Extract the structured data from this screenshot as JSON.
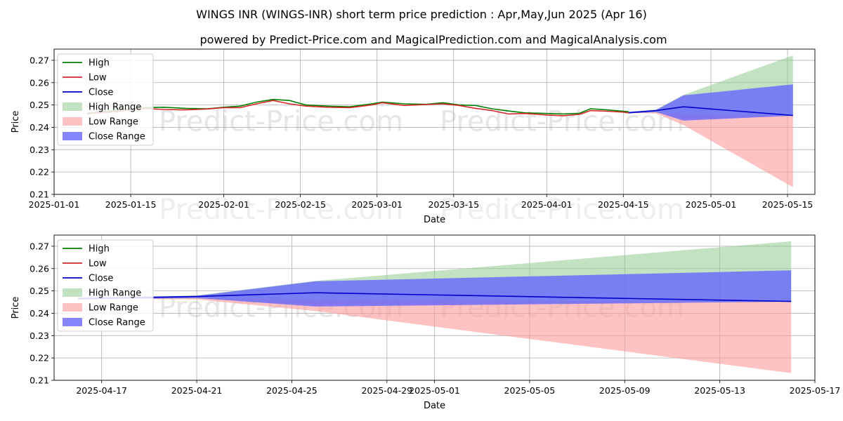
{
  "title": "WINGS INR (WINGS-INR) short term price prediction : Apr,May,Jun 2025 (Apr 16)",
  "subtitle": "powered by Predict-Price.com and MagicalPrediction.com and MagicalAnalysis.com",
  "watermark": "Predict-Price.com",
  "colors": {
    "high": "#008000",
    "low": "#d62728",
    "close": "#0000cc",
    "high_range": "#8fca8f",
    "low_range": "#ff9a9a",
    "close_range": "#6666ff",
    "grid": "#b0b0b0"
  },
  "chart_data": [
    {
      "type": "line",
      "panel": "top",
      "xlabel": "Date",
      "ylabel": "Price",
      "xlim": [
        "2025-01-01",
        "2025-05-20"
      ],
      "ylim": [
        0.21,
        0.275
      ],
      "grid": true,
      "legend_position": "top-left",
      "x_ticks": [
        "2025-01-01",
        "2025-01-15",
        "2025-02-01",
        "2025-02-15",
        "2025-03-01",
        "2025-03-15",
        "2025-04-01",
        "2025-04-15",
        "2025-05-01",
        "2025-05-15"
      ],
      "y_ticks": [
        "0.21",
        "0.22",
        "0.23",
        "0.24",
        "0.25",
        "0.26",
        "0.27"
      ],
      "legend": [
        "High",
        "Low",
        "Close",
        "High Range",
        "Low Range",
        "Close Range"
      ],
      "series": [
        {
          "name": "High",
          "points": [
            [
              "2025-01-07",
              0.2463
            ],
            [
              "2025-01-12",
              0.2475
            ],
            [
              "2025-01-17",
              0.2488
            ],
            [
              "2025-01-21",
              0.249
            ],
            [
              "2025-01-25",
              0.2485
            ],
            [
              "2025-01-29",
              0.2483
            ],
            [
              "2025-02-01",
              0.249
            ],
            [
              "2025-02-04",
              0.2495
            ],
            [
              "2025-02-07",
              0.2513
            ],
            [
              "2025-02-10",
              0.2525
            ],
            [
              "2025-02-13",
              0.252
            ],
            [
              "2025-02-16",
              0.25
            ],
            [
              "2025-02-20",
              0.2495
            ],
            [
              "2025-02-24",
              0.2492
            ],
            [
              "2025-02-28",
              0.2505
            ],
            [
              "2025-03-02",
              0.2513
            ],
            [
              "2025-03-06",
              0.2505
            ],
            [
              "2025-03-10",
              0.2503
            ],
            [
              "2025-03-13",
              0.251
            ],
            [
              "2025-03-16",
              0.25
            ],
            [
              "2025-03-19",
              0.2498
            ],
            [
              "2025-03-22",
              0.2483
            ],
            [
              "2025-03-25",
              0.2473
            ],
            [
              "2025-03-28",
              0.2465
            ],
            [
              "2025-04-01",
              0.2462
            ],
            [
              "2025-04-04",
              0.246
            ],
            [
              "2025-04-07",
              0.2463
            ],
            [
              "2025-04-09",
              0.2483
            ],
            [
              "2025-04-12",
              0.2478
            ],
            [
              "2025-04-15",
              0.2472
            ],
            [
              "2025-04-16",
              0.247
            ]
          ]
        },
        {
          "name": "Low",
          "points": [
            [
              "2025-01-07",
              0.246
            ],
            [
              "2025-01-12",
              0.247
            ],
            [
              "2025-01-17",
              0.2485
            ],
            [
              "2025-01-21",
              0.248
            ],
            [
              "2025-01-25",
              0.2478
            ],
            [
              "2025-01-29",
              0.2482
            ],
            [
              "2025-02-01",
              0.2488
            ],
            [
              "2025-02-04",
              0.2488
            ],
            [
              "2025-02-07",
              0.2505
            ],
            [
              "2025-02-10",
              0.252
            ],
            [
              "2025-02-13",
              0.2505
            ],
            [
              "2025-02-16",
              0.2495
            ],
            [
              "2025-02-20",
              0.249
            ],
            [
              "2025-02-24",
              0.2488
            ],
            [
              "2025-02-28",
              0.25
            ],
            [
              "2025-03-02",
              0.251
            ],
            [
              "2025-03-06",
              0.2498
            ],
            [
              "2025-03-10",
              0.2502
            ],
            [
              "2025-03-13",
              0.2505
            ],
            [
              "2025-03-16",
              0.2498
            ],
            [
              "2025-03-19",
              0.2485
            ],
            [
              "2025-03-22",
              0.2475
            ],
            [
              "2025-03-25",
              0.246
            ],
            [
              "2025-03-28",
              0.2462
            ],
            [
              "2025-04-01",
              0.2455
            ],
            [
              "2025-04-04",
              0.2452
            ],
            [
              "2025-04-07",
              0.2458
            ],
            [
              "2025-04-09",
              0.2475
            ],
            [
              "2025-04-12",
              0.2472
            ],
            [
              "2025-04-15",
              0.2468
            ],
            [
              "2025-04-16",
              0.2465
            ]
          ]
        },
        {
          "name": "Close",
          "points": [
            [
              "2025-04-16",
              0.2465
            ],
            [
              "2025-04-21",
              0.2475
            ],
            [
              "2025-04-26",
              0.2492
            ],
            [
              "2025-05-16",
              0.2453
            ]
          ]
        }
      ],
      "bands": [
        {
          "name": "High Range",
          "points": [
            [
              "2025-04-16",
              0.2468,
              0.247
            ],
            [
              "2025-04-21",
              0.2465,
              0.248
            ],
            [
              "2025-04-26",
              0.244,
              0.2545
            ],
            [
              "2025-05-16",
              0.245,
              0.2722
            ]
          ]
        },
        {
          "name": "Low Range",
          "points": [
            [
              "2025-04-16",
              0.2465,
              0.2468
            ],
            [
              "2025-04-21",
              0.2462,
              0.2468
            ],
            [
              "2025-04-26",
              0.241,
              0.246
            ],
            [
              "2025-05-16",
              0.2132,
              0.245
            ]
          ]
        },
        {
          "name": "Close Range",
          "points": [
            [
              "2025-04-16",
              0.2463,
              0.247
            ],
            [
              "2025-04-21",
              0.2468,
              0.2478
            ],
            [
              "2025-04-26",
              0.243,
              0.2543
            ],
            [
              "2025-05-16",
              0.2452,
              0.2592
            ]
          ]
        }
      ]
    },
    {
      "type": "line",
      "panel": "bottom",
      "xlabel": "Date",
      "ylabel": "Price",
      "xlim": [
        "2025-04-15",
        "2025-05-17"
      ],
      "ylim": [
        0.21,
        0.275
      ],
      "grid": true,
      "legend_position": "top-left",
      "x_ticks": [
        "2025-04-17",
        "2025-04-21",
        "2025-04-25",
        "2025-04-29",
        "2025-05-01",
        "2025-05-05",
        "2025-05-09",
        "2025-05-13",
        "2025-05-17"
      ],
      "y_ticks": [
        "0.21",
        "0.22",
        "0.23",
        "0.24",
        "0.25",
        "0.26",
        "0.27"
      ],
      "legend": [
        "High",
        "Low",
        "Close",
        "High Range",
        "Low Range",
        "Close Range"
      ],
      "series": [
        {
          "name": "High",
          "points": []
        },
        {
          "name": "Low",
          "points": []
        },
        {
          "name": "Close",
          "points": [
            [
              "2025-04-16",
              0.2465
            ],
            [
              "2025-04-21",
              0.2475
            ],
            [
              "2025-04-26",
              0.2492
            ],
            [
              "2025-05-16",
              0.2453
            ]
          ]
        }
      ],
      "bands": [
        {
          "name": "High Range",
          "points": [
            [
              "2025-04-16",
              0.2468,
              0.247
            ],
            [
              "2025-04-21",
              0.2465,
              0.248
            ],
            [
              "2025-04-26",
              0.244,
              0.2545
            ],
            [
              "2025-05-16",
              0.245,
              0.2722
            ]
          ]
        },
        {
          "name": "Low Range",
          "points": [
            [
              "2025-04-16",
              0.2465,
              0.2468
            ],
            [
              "2025-04-21",
              0.2462,
              0.2468
            ],
            [
              "2025-04-26",
              0.241,
              0.246
            ],
            [
              "2025-05-16",
              0.2132,
              0.245
            ]
          ]
        },
        {
          "name": "Close Range",
          "points": [
            [
              "2025-04-16",
              0.2463,
              0.247
            ],
            [
              "2025-04-21",
              0.2468,
              0.2478
            ],
            [
              "2025-04-26",
              0.243,
              0.2543
            ],
            [
              "2025-05-16",
              0.2452,
              0.2592
            ]
          ]
        }
      ]
    }
  ]
}
